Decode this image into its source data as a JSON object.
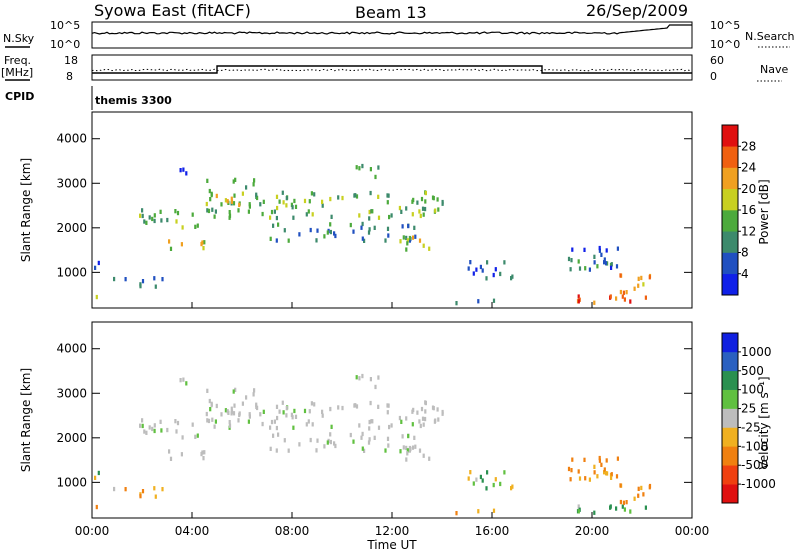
{
  "header": {
    "title_left": "Syowa East (fitACF)",
    "title_center": "Beam 13",
    "title_right": "26/Sep/2009"
  },
  "panels": {
    "nsky": {
      "left_label": "N.Sky",
      "left_ticks": [
        "10^5",
        "10^0"
      ],
      "right_ticks": [
        "10^5",
        "10^0"
      ],
      "right_label": "N.Search"
    },
    "freq": {
      "left_label_1": "Freq.",
      "left_label_2": "[MHz]",
      "left_ticks": [
        "18",
        "8"
      ],
      "right_ticks": [
        "60",
        "0"
      ],
      "right_label": "Nave"
    },
    "cpid": {
      "label": "CPID",
      "value": "themis 3300"
    }
  },
  "chart_data": {
    "type": "heatmap",
    "x_range": [
      "00:00",
      "24:00"
    ],
    "xlabel": "Time UT",
    "x_ticks": [
      "00:00",
      "04:00",
      "08:00",
      "12:00",
      "16:00",
      "20:00",
      "00:00"
    ],
    "ylabel": "Slant Range [km]",
    "y_ticks": [
      1000,
      2000,
      3000,
      4000
    ],
    "ylim": [
      200,
      4600
    ],
    "colors": {
      "power": [
        "#1020e8",
        "#2050c0",
        "#3c8a6c",
        "#4caa3c",
        "#c8d020",
        "#f0a020",
        "#f06010",
        "#e01010"
      ],
      "velocity": [
        "#e01010",
        "#f04010",
        "#f08010",
        "#f0b020",
        "#bdbdbd",
        "#60c040",
        "#2a9050",
        "#2a60c0",
        "#1020e0"
      ]
    },
    "power": {
      "label": "Power [dB]",
      "ticks": [
        4,
        8,
        12,
        16,
        20,
        24,
        28
      ],
      "range": [
        0,
        32
      ]
    },
    "velocity": {
      "label": "Velocity [m s⁻¹]",
      "ticks": [
        1000,
        500,
        100,
        25,
        -25,
        -100,
        -500,
        -1000
      ]
    },
    "echo_regions": [
      {
        "t0": 0.0,
        "t1": 0.5,
        "r0": 1100,
        "r1": 1250,
        "p": 6,
        "v": 80
      },
      {
        "t0": 0.0,
        "t1": 0.4,
        "r0": 400,
        "r1": 500,
        "p": 14,
        "v": -200
      },
      {
        "t0": 0.5,
        "t1": 3.0,
        "r0": 800,
        "r1": 950,
        "p": 9,
        "v": -120
      },
      {
        "t0": 0.7,
        "t1": 2.8,
        "r0": 650,
        "r1": 750,
        "p": 8,
        "v": -150
      },
      {
        "t0": 1.5,
        "t1": 4.3,
        "r0": 2000,
        "r1": 2400,
        "p": 12,
        "v": 5
      },
      {
        "t0": 3.0,
        "t1": 4.5,
        "r0": 1500,
        "r1": 1700,
        "p": 18,
        "v": 5
      },
      {
        "t0": 3.5,
        "t1": 4.5,
        "r0": 3200,
        "r1": 3400,
        "p": 6,
        "v": 5
      },
      {
        "t0": 4.5,
        "t1": 10.0,
        "r0": 2200,
        "r1": 2800,
        "p": 14,
        "v": 5
      },
      {
        "t0": 4.5,
        "t1": 6.5,
        "r0": 2500,
        "r1": 3100,
        "p": 16,
        "v": 5
      },
      {
        "t0": 7.0,
        "t1": 13.0,
        "r0": 1700,
        "r1": 2100,
        "p": 10,
        "v": 5
      },
      {
        "t0": 10.0,
        "t1": 14.0,
        "r0": 2200,
        "r1": 2800,
        "p": 13,
        "v": 5
      },
      {
        "t0": 10.5,
        "t1": 11.5,
        "r0": 3100,
        "r1": 3400,
        "p": 16,
        "v": 5
      },
      {
        "t0": 12.0,
        "t1": 13.5,
        "r0": 1500,
        "r1": 1800,
        "p": 18,
        "v": 5
      },
      {
        "t0": 15.0,
        "t1": 17.0,
        "r0": 850,
        "r1": 1250,
        "p": 7,
        "v": 80
      },
      {
        "t0": 14.5,
        "t1": 16.5,
        "r0": 300,
        "r1": 400,
        "p": 6,
        "v": -200
      },
      {
        "t0": 19.0,
        "t1": 21.0,
        "r0": 1000,
        "r1": 1600,
        "p": 8,
        "v": -150
      },
      {
        "t0": 19.0,
        "t1": 22.5,
        "r0": 300,
        "r1": 500,
        "p": 25,
        "v": 150
      },
      {
        "t0": 21.0,
        "t1": 22.3,
        "r0": 500,
        "r1": 1000,
        "p": 22,
        "v": -200
      }
    ]
  }
}
